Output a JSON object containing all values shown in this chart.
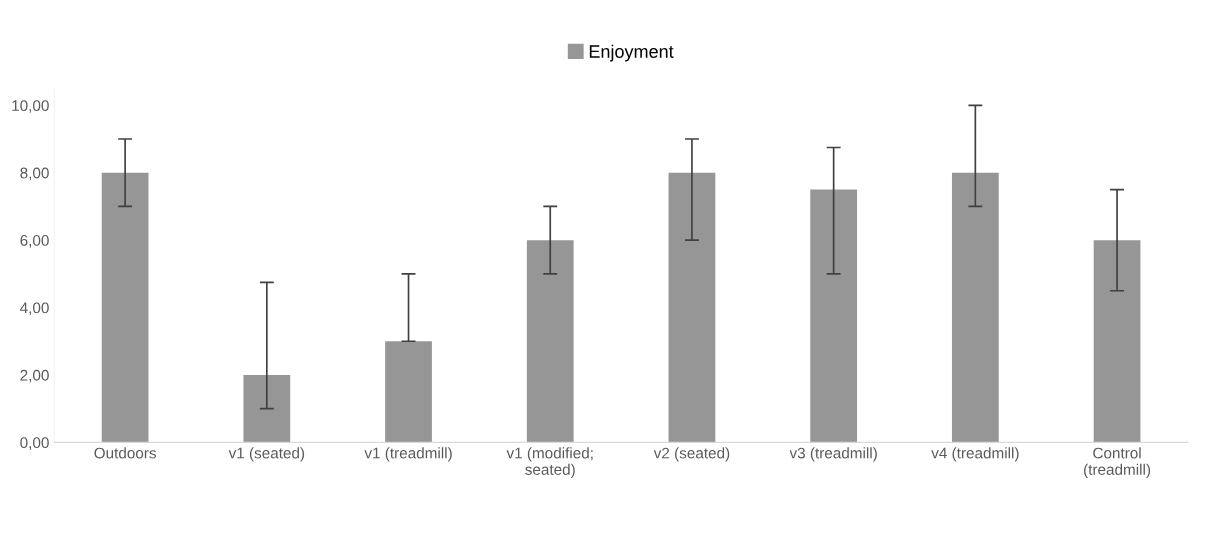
{
  "chart_data": {
    "type": "bar",
    "categories": [
      "Outdoors",
      "v1 (seated)",
      "v1 (treadmill)",
      "v1 (modified;\nseated)",
      "v2 (seated)",
      "v3 (treadmill)",
      "v4 (treadmill)",
      "Control\n(treadmill)"
    ],
    "series": [
      {
        "name": "Enjoyment",
        "color": "#969696",
        "values": [
          8,
          2,
          3,
          6,
          8,
          7.5,
          8,
          6
        ],
        "errors": [
          [
            7,
            9
          ],
          [
            1,
            4.75
          ],
          [
            3,
            5
          ],
          [
            5,
            7
          ],
          [
            6,
            9
          ],
          [
            5,
            8.75
          ],
          [
            7,
            10
          ],
          [
            4.5,
            7.5
          ]
        ]
      }
    ],
    "ylim": [
      0,
      10.5
    ],
    "yticks": [
      {
        "value": 0,
        "label": "0,00"
      },
      {
        "value": 2,
        "label": "2,00"
      },
      {
        "value": 4,
        "label": "4,00"
      },
      {
        "value": 6,
        "label": "6,00"
      },
      {
        "value": 8,
        "label": "8,00"
      },
      {
        "value": 10,
        "label": "10,00"
      }
    ],
    "grid": false,
    "legend": "top"
  }
}
